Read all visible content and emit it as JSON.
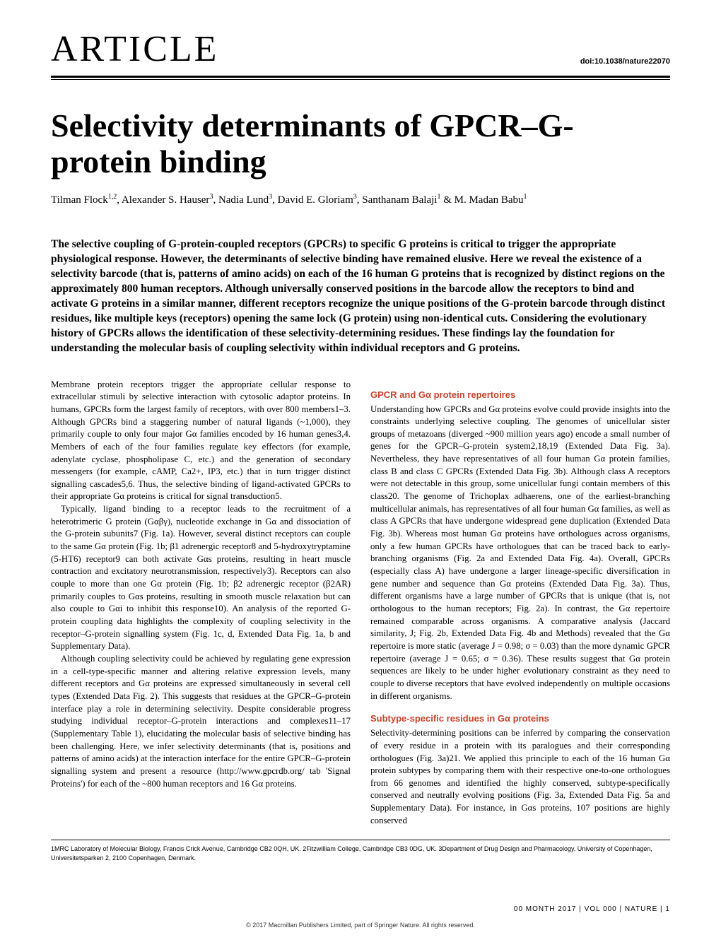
{
  "header": {
    "article_type": "ARTICLE",
    "doi": "doi:10.1038/nature22070"
  },
  "title": "Selectivity determinants of GPCR–G-protein binding",
  "authors_html": "Tilman Flock<sup>1,2</sup>, Alexander S. Hauser<sup>3</sup>, Nadia Lund<sup>3</sup>, David E. Gloriam<sup>3</sup>, Santhanam Balaji<sup>1</sup> & M. Madan Babu<sup>1</sup>",
  "abstract": "The selective coupling of G-protein-coupled receptors (GPCRs) to specific G proteins is critical to trigger the appropriate physiological response. However, the determinants of selective binding have remained elusive. Here we reveal the existence of a selectivity barcode (that is, patterns of amino acids) on each of the 16 human G proteins that is recognized by distinct regions on the approximately 800 human receptors. Although universally conserved positions in the barcode allow the receptors to bind and activate G proteins in a similar manner, different receptors recognize the unique positions of the G-protein barcode through distinct residues, like multiple keys (receptors) opening the same lock (G protein) using non-identical cuts. Considering the evolutionary history of GPCRs allows the identification of these selectivity-determining residues. These findings lay the foundation for understanding the molecular basis of coupling selectivity within individual receptors and G proteins.",
  "left_column": {
    "p1": "Membrane protein receptors trigger the appropriate cellular response to extracellular stimuli by selective interaction with cytosolic adaptor proteins. In humans, GPCRs form the largest family of receptors, with over 800 members1–3. Although GPCRs bind a staggering number of natural ligands (~1,000), they primarily couple to only four major Gα families encoded by 16 human genes3,4. Members of each of the four families regulate key effectors (for example, adenylate cyclase, phospholipase C, etc.) and the generation of secondary messengers (for example, cAMP, Ca2+, IP3, etc.) that in turn trigger distinct signalling cascades5,6. Thus, the selective binding of ligand-activated GPCRs to their appropriate Gα proteins is critical for signal transduction5.",
    "p2": "Typically, ligand binding to a receptor leads to the recruitment of a heterotrimeric G protein (Gαβγ), nucleotide exchange in Gα and dissociation of the G-protein subunits7 (Fig. 1a). However, several distinct receptors can couple to the same Gα protein (Fig. 1b; β1 adrenergic receptor8 and 5-hydroxytryptamine (5-HT6) receptor9 can both activate Gαs proteins, resulting in heart muscle contraction and excitatory neurotransmission, respectively3). Receptors can also couple to more than one Gα protein (Fig. 1b; β2 adrenergic receptor (β2AR) primarily couples to Gαs proteins, resulting in smooth muscle relaxation but can also couple to Gαi to inhibit this response10). An analysis of the reported G-protein coupling data highlights the complexity of coupling selectivity in the receptor–G-protein signalling system (Fig. 1c, d, Extended Data Fig. 1a, b and Supplementary Data).",
    "p3": "Although coupling selectivity could be achieved by regulating gene expression in a cell-type-specific manner and altering relative expression levels, many different receptors and Gα proteins are expressed simultaneously in several cell types (Extended Data Fig. 2). This suggests that residues at the GPCR–G-protein interface play a role in determining selectivity. Despite considerable progress studying individual receptor–G-protein interactions and complexes11–17 (Supplementary Table 1), elucidating the molecular basis of selective binding has been challenging. Here, we infer selectivity determinants (that is, positions and patterns of amino acids) at the interaction interface for the entire GPCR–G-protein signalling system and present a resource (http://www.gpcrdb.org/ tab 'Signal Proteins') for each of the ~800 human receptors and 16 Gα proteins."
  },
  "right_column": {
    "head1": "GPCR and Gα protein repertoires",
    "p1": "Understanding how GPCRs and Gα proteins evolve could provide insights into the constraints underlying selective coupling. The genomes of unicellular sister groups of metazoans (diverged ~900 million years ago) encode a small number of genes for the GPCR–G-protein system2,18,19 (Extended Data Fig. 3a). Nevertheless, they have representatives of all four human Gα protein families, class B and class C GPCRs (Extended Data Fig. 3b). Although class A receptors were not detectable in this group, some unicellular fungi contain members of this class20. The genome of Trichoplax adhaerens, one of the earliest-branching multicellular animals, has representatives of all four human Gα families, as well as class A GPCRs that have undergone widespread gene duplication (Extended Data Fig. 3b). Whereas most human Gα proteins have orthologues across organisms, only a few human GPCRs have orthologues that can be traced back to early-branching organisms (Fig. 2a and Extended Data Fig. 4a). Overall, GPCRs (especially class A) have undergone a larger lineage-specific diversification in gene number and sequence than Gα proteins (Extended Data Fig. 3a). Thus, different organisms have a large number of GPCRs that is unique (that is, not orthologous to the human receptors; Fig. 2a). In contrast, the Gα repertoire remained comparable across organisms. A comparative analysis (Jaccard similarity, J; Fig. 2b, Extended Data Fig. 4b and Methods) revealed that the Gα repertoire is more static (average J = 0.98; σ = 0.03) than the more dynamic GPCR repertoire (average J = 0.65; σ = 0.36). These results suggest that Gα protein sequences are likely to be under higher evolutionary constraint as they need to couple to diverse receptors that have evolved independently on multiple occasions in different organisms.",
    "head2": "Subtype-specific residues in Gα proteins",
    "p2": "Selectivity-determining positions can be inferred by comparing the conservation of every residue in a protein with its paralogues and their corresponding orthologues (Fig. 3a)21. We applied this principle to each of the 16 human Gα protein subtypes by comparing them with their respective one-to-one orthologues from 66 genomes and identified the highly conserved, subtype-specifically conserved and neutrally evolving positions (Fig. 3a, Extended Data Fig. 5a and Supplementary Data). For instance, in Gαs proteins, 107 positions are highly conserved"
  },
  "affiliations": "1MRC Laboratory of Molecular Biology, Francis Crick Avenue, Cambridge CB2 0QH, UK. 2Fitzwilliam College, Cambridge CB3 0DG, UK. 3Department of Drug Design and Pharmacology, University of Copenhagen, Universitetsparken 2, 2100 Copenhagen, Denmark.",
  "footer": {
    "page_line": "00 MONTH 2017 | VOL 000 | NATURE | 1",
    "copyright": "© 2017 Macmillan Publishers Limited, part of Springer Nature. All rights reserved."
  },
  "colors": {
    "section_head": "#c8432c",
    "text": "#000000",
    "background": "#ffffff"
  },
  "typography": {
    "article_type_fontsize_pt": 39,
    "title_fontsize_pt": 35,
    "abstract_fontsize_pt": 12,
    "body_fontsize_pt": 10,
    "affil_fontsize_pt": 7
  }
}
